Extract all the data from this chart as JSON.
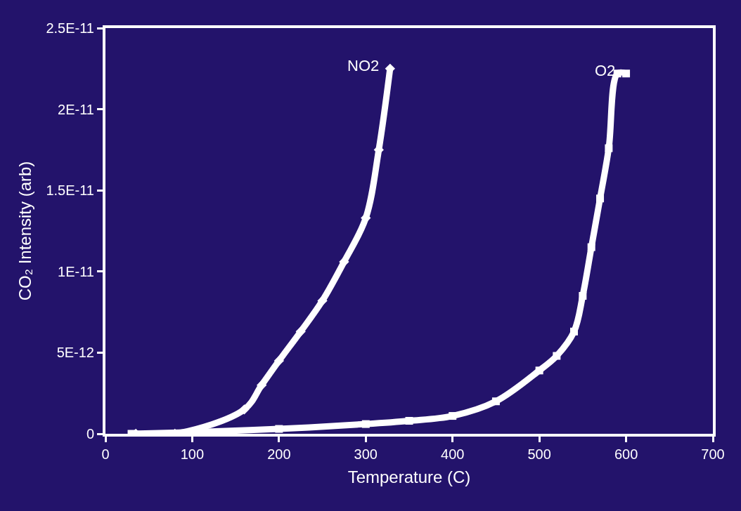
{
  "chart_data": {
    "type": "line",
    "xlabel": "Temperature (C)",
    "ylabel": "CO₂ Intensity (arb)",
    "xlim": [
      0,
      700
    ],
    "xticks": [
      0,
      100,
      200,
      300,
      400,
      500,
      600,
      700
    ],
    "ylim": [
      0,
      2.5e-11
    ],
    "yticks": [
      {
        "value": 0,
        "label": "0"
      },
      {
        "value": 5e-12,
        "label": "5E-12"
      },
      {
        "value": 1e-11,
        "label": "1E-11"
      },
      {
        "value": 1.5e-11,
        "label": "1.5E-11"
      },
      {
        "value": 2e-11,
        "label": "2E-11"
      },
      {
        "value": 2.5e-11,
        "label": "2.5E-11"
      }
    ],
    "grid": false,
    "legend": false,
    "series": [
      {
        "name": "NO2",
        "color": "#ffffff",
        "marker": "diamond",
        "x": [
          35,
          80,
          160,
          180,
          200,
          225,
          250,
          275,
          300,
          315,
          328
        ],
        "values": [
          0,
          0,
          1.5e-12,
          3e-12,
          4.5e-12,
          6.3e-12,
          8.2e-12,
          1.06e-11,
          1.33e-11,
          1.75e-11,
          2.25e-11
        ]
      },
      {
        "name": "O2",
        "color": "#ffffff",
        "marker": "square",
        "x": [
          30,
          100,
          200,
          300,
          350,
          400,
          450,
          500,
          520,
          540,
          550,
          560,
          570,
          580,
          590,
          600
        ],
        "values": [
          0,
          1e-13,
          3e-13,
          6e-13,
          8e-13,
          1.1e-12,
          2e-12,
          3.9e-12,
          4.8e-12,
          6.3e-12,
          8.5e-12,
          1.15e-11,
          1.45e-11,
          1.76e-11,
          2.22e-11,
          2.22e-11
        ]
      }
    ]
  }
}
